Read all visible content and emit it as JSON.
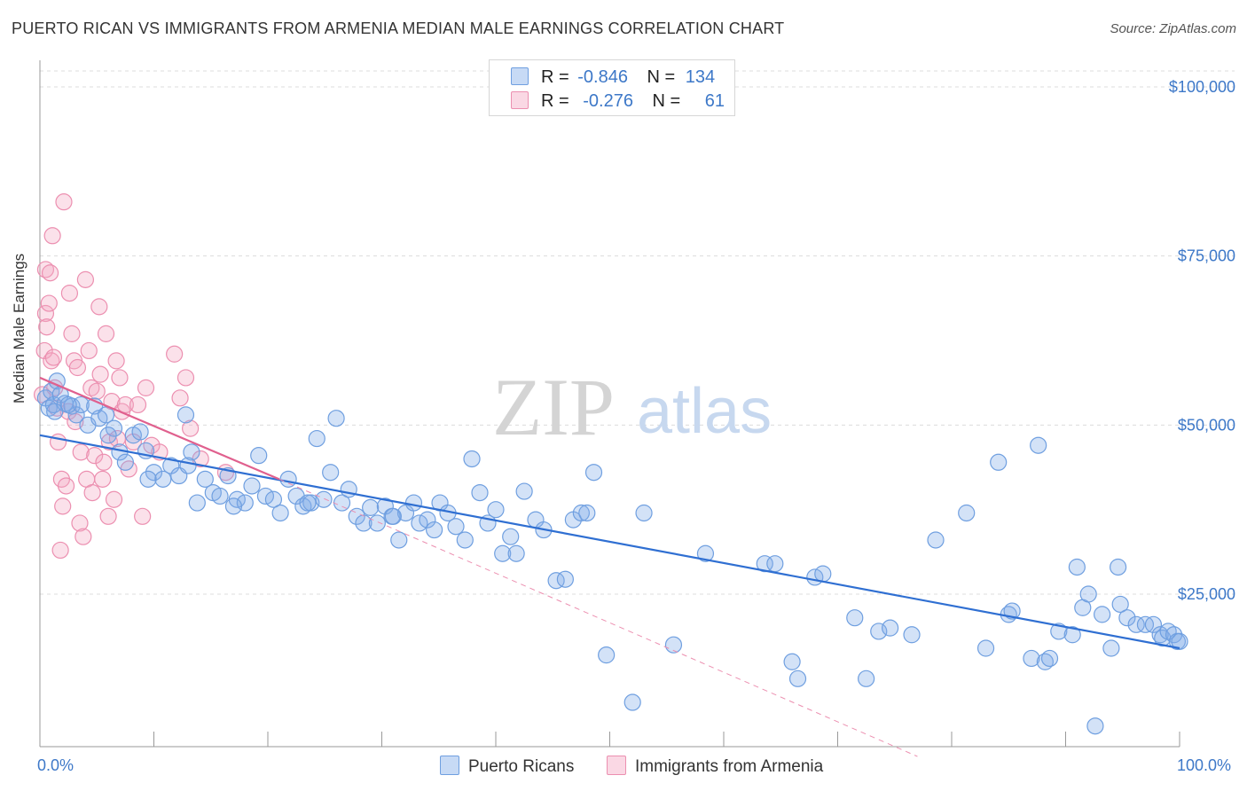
{
  "header": {
    "title": "PUERTO RICAN VS IMMIGRANTS FROM ARMENIA MEDIAN MALE EARNINGS CORRELATION CHART",
    "source": "Source: ZipAtlas.com"
  },
  "watermark": {
    "zip": "ZIP",
    "atlas": "atlas"
  },
  "legend": {
    "rows": [
      {
        "r_label": "R =",
        "r_value": "-0.846",
        "n_label": "N =",
        "n_value": "134",
        "color": "#6f9fe0"
      },
      {
        "r_label": "R =",
        "r_value": "-0.276",
        "n_label": "N =",
        "n_value": "61",
        "color": "#ee95b2"
      }
    ]
  },
  "bottom_legend": {
    "items": [
      {
        "label": "Puerto Ricans",
        "color": "#6f9fe0"
      },
      {
        "label": "Immigrants from Armenia",
        "color": "#ee95b2"
      }
    ]
  },
  "colors": {
    "blue_fill": "rgba(130,172,232,0.35)",
    "blue_stroke": "#6f9fe0",
    "blue_line": "#2f6fd2",
    "pink_fill": "rgba(244,168,196,0.35)",
    "pink_stroke": "#ec8fb0",
    "pink_line": "#e0608e",
    "tick_text": "#3d78c8",
    "grid": "#dcdcdc"
  },
  "chart_data": {
    "type": "scatter",
    "title": "PUERTO RICAN VS IMMIGRANTS FROM ARMENIA MEDIAN MALE EARNINGS CORRELATION CHART",
    "xlabel": "",
    "ylabel": "Median Male Earnings",
    "x_tick_labels": [
      "0.0%",
      "100.0%"
    ],
    "y_tick_labels": [
      "$25,000",
      "$50,000",
      "$75,000",
      "$100,000"
    ],
    "y_tick_values": [
      25000,
      50000,
      75000,
      100000
    ],
    "xlim": [
      0,
      100
    ],
    "ylim": [
      0,
      102500
    ],
    "grid": true,
    "legend_position": "top-center",
    "series": [
      {
        "name": "Puerto Ricans",
        "trend": {
          "x0": 0,
          "y0": 48500,
          "x1": 100,
          "y1": 17000
        },
        "points": [
          [
            0.5,
            54000
          ],
          [
            0.8,
            52500
          ],
          [
            1.0,
            55000
          ],
          [
            1.2,
            53000
          ],
          [
            1.5,
            56500
          ],
          [
            1.8,
            54500
          ],
          [
            2.2,
            53200
          ],
          [
            2.8,
            52800
          ],
          [
            3.2,
            51500
          ],
          [
            3.6,
            53000
          ],
          [
            4.2,
            50000
          ],
          [
            4.8,
            52800
          ],
          [
            5.2,
            51000
          ],
          [
            5.8,
            51500
          ],
          [
            6.5,
            49500
          ],
          [
            7.0,
            46000
          ],
          [
            7.5,
            44500
          ],
          [
            8.2,
            48500
          ],
          [
            8.8,
            49000
          ],
          [
            9.3,
            46200
          ],
          [
            10.0,
            43000
          ],
          [
            10.8,
            42000
          ],
          [
            11.5,
            44000
          ],
          [
            12.2,
            42500
          ],
          [
            12.8,
            51500
          ],
          [
            13.3,
            46000
          ],
          [
            13.8,
            38500
          ],
          [
            14.5,
            42000
          ],
          [
            15.2,
            40000
          ],
          [
            15.8,
            39500
          ],
          [
            16.5,
            42500
          ],
          [
            17.3,
            39000
          ],
          [
            18.0,
            38500
          ],
          [
            18.6,
            41000
          ],
          [
            19.2,
            45500
          ],
          [
            19.8,
            39500
          ],
          [
            20.5,
            39000
          ],
          [
            21.1,
            37000
          ],
          [
            21.8,
            42000
          ],
          [
            22.5,
            39500
          ],
          [
            23.1,
            38000
          ],
          [
            23.8,
            38500
          ],
          [
            24.3,
            48000
          ],
          [
            24.9,
            39000
          ],
          [
            25.5,
            43000
          ],
          [
            26.0,
            51000
          ],
          [
            26.5,
            38500
          ],
          [
            27.1,
            40500
          ],
          [
            27.8,
            36500
          ],
          [
            28.4,
            35500
          ],
          [
            29.0,
            37800
          ],
          [
            29.6,
            35500
          ],
          [
            30.3,
            38000
          ],
          [
            30.9,
            36500
          ],
          [
            31.5,
            33000
          ],
          [
            32.1,
            37000
          ],
          [
            32.8,
            38500
          ],
          [
            33.3,
            35500
          ],
          [
            34.0,
            36000
          ],
          [
            34.6,
            34500
          ],
          [
            35.1,
            38500
          ],
          [
            35.8,
            37000
          ],
          [
            36.5,
            35000
          ],
          [
            37.3,
            33000
          ],
          [
            37.9,
            45000
          ],
          [
            38.6,
            40000
          ],
          [
            39.3,
            35500
          ],
          [
            40.0,
            37500
          ],
          [
            40.6,
            31000
          ],
          [
            41.3,
            33500
          ],
          [
            41.8,
            31000
          ],
          [
            42.5,
            40200
          ],
          [
            43.5,
            36000
          ],
          [
            44.2,
            34500
          ],
          [
            45.3,
            27000
          ],
          [
            46.1,
            27200
          ],
          [
            46.8,
            36000
          ],
          [
            47.5,
            37000
          ],
          [
            48.6,
            43000
          ],
          [
            49.7,
            16000
          ],
          [
            52.0,
            9000
          ],
          [
            53.0,
            37000
          ],
          [
            55.6,
            17500
          ],
          [
            58.4,
            31000
          ],
          [
            63.6,
            29500
          ],
          [
            66.0,
            15000
          ],
          [
            66.5,
            12500
          ],
          [
            68.0,
            27500
          ],
          [
            68.7,
            28000
          ],
          [
            71.5,
            21500
          ],
          [
            72.5,
            12500
          ],
          [
            73.6,
            19500
          ],
          [
            74.6,
            20000
          ],
          [
            76.5,
            19000
          ],
          [
            78.6,
            33000
          ],
          [
            81.3,
            37000
          ],
          [
            83.0,
            17000
          ],
          [
            84.1,
            44500
          ],
          [
            85.0,
            22000
          ],
          [
            85.3,
            22500
          ],
          [
            87.0,
            15500
          ],
          [
            87.6,
            47000
          ],
          [
            88.2,
            15000
          ],
          [
            88.6,
            15500
          ],
          [
            89.4,
            19500
          ],
          [
            90.6,
            19000
          ],
          [
            91.0,
            29000
          ],
          [
            91.5,
            23000
          ],
          [
            92.0,
            25000
          ],
          [
            92.6,
            5500
          ],
          [
            93.2,
            22000
          ],
          [
            94.0,
            17000
          ],
          [
            94.6,
            29000
          ],
          [
            94.8,
            23500
          ],
          [
            95.4,
            21500
          ],
          [
            96.2,
            20500
          ],
          [
            97.0,
            20500
          ],
          [
            97.7,
            20500
          ],
          [
            98.3,
            19000
          ],
          [
            98.5,
            18500
          ],
          [
            99.0,
            19500
          ],
          [
            99.5,
            19000
          ],
          [
            99.8,
            18000
          ],
          [
            100.0,
            18000
          ],
          [
            9.5,
            42000
          ],
          [
            17.0,
            38000
          ],
          [
            23.5,
            38500
          ],
          [
            64.5,
            29500
          ],
          [
            48.0,
            37000
          ],
          [
            31.0,
            36500
          ],
          [
            13.0,
            44000
          ],
          [
            6.0,
            48500
          ],
          [
            2.5,
            53000
          ],
          [
            1.3,
            52000
          ]
        ]
      },
      {
        "name": "Immigrants from Armenia",
        "trend": {
          "x0": 0,
          "y0": 57000,
          "x1": 21,
          "y1": 42000,
          "dash_x1": 77,
          "dash_y1": 1000
        },
        "points": [
          [
            0.2,
            54500
          ],
          [
            0.4,
            61000
          ],
          [
            0.5,
            66500
          ],
          [
            0.5,
            73000
          ],
          [
            0.6,
            64500
          ],
          [
            0.8,
            68000
          ],
          [
            0.9,
            72500
          ],
          [
            1.0,
            59500
          ],
          [
            1.1,
            78000
          ],
          [
            1.2,
            60000
          ],
          [
            1.3,
            55500
          ],
          [
            1.5,
            52500
          ],
          [
            1.6,
            47500
          ],
          [
            1.8,
            31500
          ],
          [
            1.9,
            42000
          ],
          [
            2.0,
            38000
          ],
          [
            2.1,
            83000
          ],
          [
            2.3,
            41000
          ],
          [
            2.5,
            52000
          ],
          [
            2.6,
            69500
          ],
          [
            2.8,
            63500
          ],
          [
            3.0,
            59500
          ],
          [
            3.1,
            50500
          ],
          [
            3.3,
            58500
          ],
          [
            3.5,
            35500
          ],
          [
            3.6,
            46000
          ],
          [
            3.8,
            33500
          ],
          [
            4.0,
            71500
          ],
          [
            4.1,
            42000
          ],
          [
            4.3,
            61000
          ],
          [
            4.5,
            55500
          ],
          [
            4.6,
            40000
          ],
          [
            4.8,
            45500
          ],
          [
            5.0,
            55000
          ],
          [
            5.2,
            67500
          ],
          [
            5.3,
            57500
          ],
          [
            5.5,
            42000
          ],
          [
            5.6,
            44500
          ],
          [
            5.8,
            63500
          ],
          [
            6.0,
            36500
          ],
          [
            6.1,
            47500
          ],
          [
            6.3,
            53500
          ],
          [
            6.5,
            39000
          ],
          [
            6.7,
            59500
          ],
          [
            6.8,
            48000
          ],
          [
            7.0,
            57000
          ],
          [
            7.2,
            52000
          ],
          [
            7.5,
            53000
          ],
          [
            7.8,
            43500
          ],
          [
            8.2,
            47500
          ],
          [
            8.6,
            53000
          ],
          [
            9.0,
            36500
          ],
          [
            9.3,
            55500
          ],
          [
            9.8,
            47000
          ],
          [
            10.5,
            46000
          ],
          [
            11.8,
            60500
          ],
          [
            12.3,
            54000
          ],
          [
            12.8,
            57000
          ],
          [
            13.2,
            49500
          ],
          [
            14.1,
            45000
          ],
          [
            16.3,
            43000
          ]
        ]
      }
    ]
  }
}
